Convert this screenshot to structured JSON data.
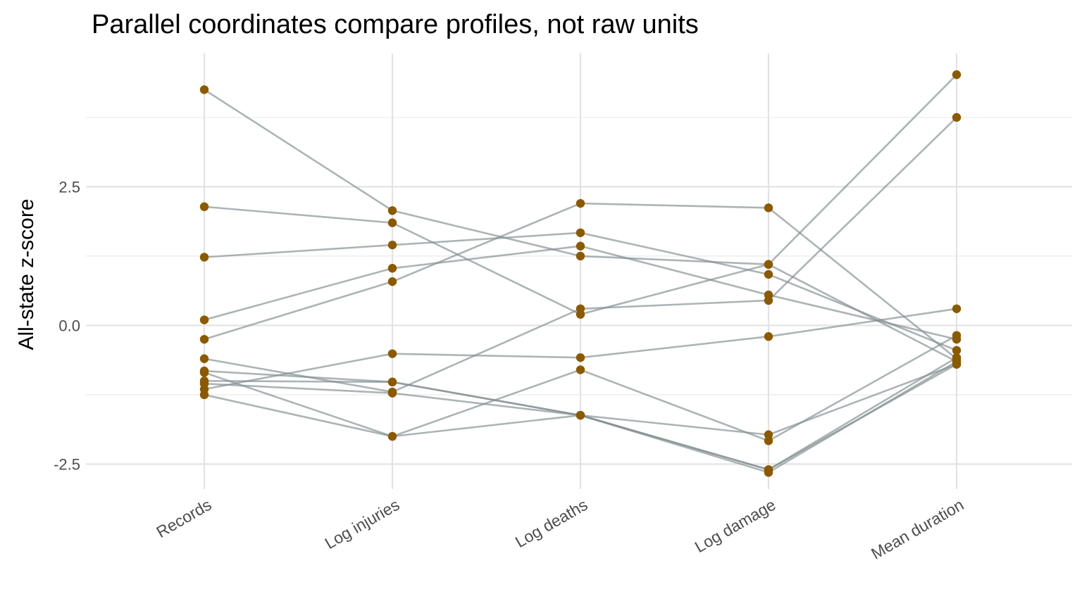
{
  "chart_data": {
    "type": "line",
    "title": "Parallel coordinates compare profiles, not raw units",
    "ylabel": "All-state z-score",
    "xlabel": "",
    "categories": [
      "Records",
      "Log injuries",
      "Log deaths",
      "Log damage",
      "Mean duration"
    ],
    "ylim": [
      -2.95,
      4.75
    ],
    "y_ticks": [
      -2.5,
      0.0,
      2.5
    ],
    "y_tick_labels": [
      "-2.5",
      "0.0",
      "2.5"
    ],
    "grid": true,
    "line_color": "#7f8c8d",
    "point_color": "#8b5a00",
    "series": [
      {
        "values": [
          4.25,
          2.07,
          1.25,
          1.1,
          -0.65
        ]
      },
      {
        "values": [
          2.14,
          1.85,
          0.2,
          1.1,
          4.52
        ]
      },
      {
        "values": [
          1.23,
          1.45,
          1.67,
          0.92,
          -0.45
        ]
      },
      {
        "values": [
          0.1,
          1.03,
          1.43,
          0.55,
          -0.25
        ]
      },
      {
        "values": [
          -0.25,
          0.79,
          2.2,
          2.12,
          -0.6
        ]
      },
      {
        "values": [
          -0.6,
          -1.2,
          0.3,
          0.45,
          3.75
        ]
      },
      {
        "values": [
          -0.82,
          -1.02,
          -1.62,
          -2.6,
          -0.7
        ]
      },
      {
        "values": [
          -1.0,
          -1.02,
          -1.62,
          -2.65,
          -0.65
        ]
      },
      {
        "values": [
          -1.25,
          -2.0,
          -1.62,
          -1.97,
          -0.7
        ]
      },
      {
        "values": [
          -1.15,
          -0.51,
          -0.58,
          -0.2,
          0.3
        ]
      },
      {
        "values": [
          -0.85,
          -2.0,
          -0.8,
          -2.08,
          -0.18
        ]
      },
      {
        "values": [
          -1.05,
          -1.22,
          -1.62,
          -2.6,
          -0.58
        ]
      }
    ]
  }
}
